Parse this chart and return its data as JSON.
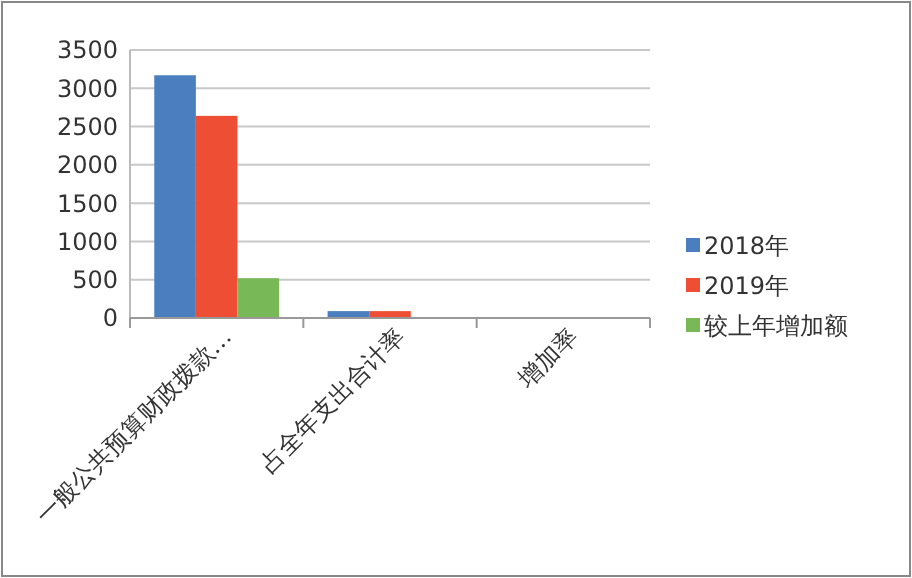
{
  "chart_data": {
    "type": "bar",
    "categories": [
      "一般公共预算财政拨款…",
      "占全年支出合计率",
      "增加率"
    ],
    "series": [
      {
        "name": "2018年",
        "color": "#4a7ebf",
        "values": [
          3170,
          90,
          null
        ]
      },
      {
        "name": "2019年",
        "color": "#ee4f34",
        "values": [
          2640,
          90,
          null
        ]
      },
      {
        "name": "较上年增加额",
        "color": "#78b856",
        "values": [
          520,
          null,
          null
        ]
      }
    ],
    "ylim": [
      0,
      3500
    ],
    "yticks": [
      0,
      500,
      1000,
      1500,
      2000,
      2500,
      3000,
      3500
    ],
    "grid": "y",
    "legend": "right"
  }
}
